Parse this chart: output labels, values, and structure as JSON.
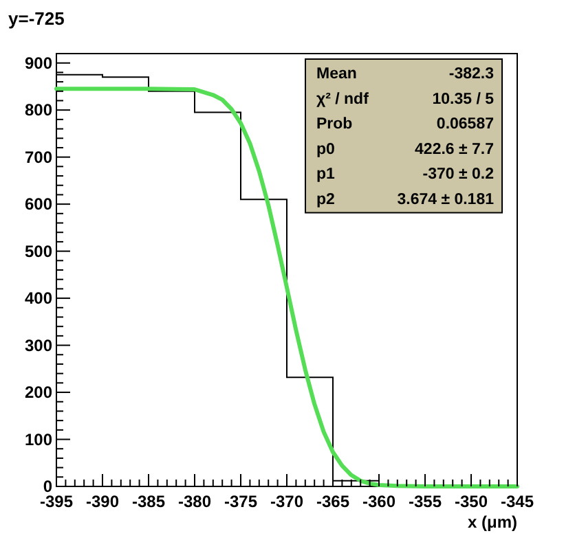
{
  "chart_data": {
    "type": "histogram",
    "title": "y=-725",
    "xlabel": "x (μm)",
    "xlim": [
      -395,
      -345
    ],
    "xticks": [
      -395,
      -390,
      -385,
      -380,
      -375,
      -370,
      -365,
      -360,
      -355,
      -350,
      -345
    ],
    "ylim": [
      0,
      920
    ],
    "yticks": [
      0,
      100,
      200,
      300,
      400,
      500,
      600,
      700,
      800,
      900
    ],
    "grid": false,
    "series": [
      {
        "color": "#000000",
        "bins": [
          -395,
          -390,
          -385,
          -380,
          -375,
          -370,
          -365,
          -360,
          -355,
          -350,
          -345
        ],
        "values": [
          875,
          870,
          840,
          795,
          610,
          232,
          12,
          0,
          0,
          0
        ]
      },
      {
        "type": "line",
        "color": "#55dd55",
        "x": [
          -395,
          -390,
          -385,
          -380,
          -378,
          -377,
          -376,
          -375,
          -374,
          -373,
          -372,
          -371,
          -370,
          -369,
          -368,
          -367,
          -366,
          -365,
          -364,
          -363,
          -362,
          -361,
          -360,
          -358,
          -355,
          -350,
          -345
        ],
        "values": [
          845,
          845,
          845,
          844,
          832,
          822,
          802,
          772,
          729,
          670,
          598,
          513,
          423,
          332,
          248,
          175,
          116,
          73,
          44,
          24,
          12,
          6,
          3,
          1,
          0,
          0,
          0
        ]
      }
    ],
    "annotations": [
      "Mean",
      "-382.3",
      "χ² / ndf",
      "10.35 / 5",
      "Prob",
      "0.06587",
      "p0",
      "422.6 ± 7.7",
      "p1",
      "-370 ± 0.2",
      "p2",
      "3.674 ± 0.181"
    ]
  }
}
